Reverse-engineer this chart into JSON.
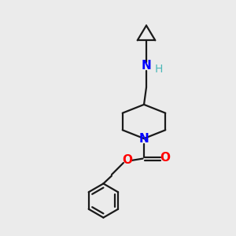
{
  "bg_color": "#ebebeb",
  "bond_color": "#1a1a1a",
  "N_color": "#0000ff",
  "O_color": "#ff0000",
  "H_color": "#4db8b8",
  "line_width": 1.6,
  "font_size_atom": 10,
  "xlim": [
    0,
    10
  ],
  "ylim": [
    0,
    10
  ],
  "figsize": [
    3.0,
    3.0
  ],
  "dpi": 100
}
